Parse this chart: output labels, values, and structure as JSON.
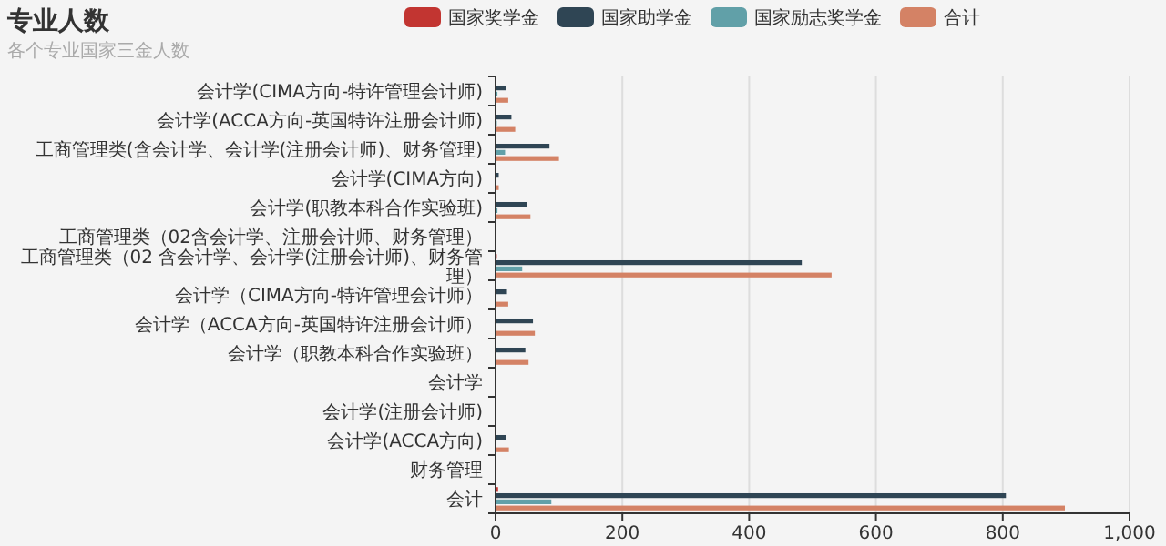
{
  "chart_data": {
    "type": "bar",
    "orientation": "horizontal",
    "title": "专业人数",
    "subtitle": "各个专业国家三金人数",
    "categories": [
      "会计学(CIMA方向-特许管理会计师)",
      "会计学(ACCA方向-英国特许注册会计师)",
      "工商管理类(含会计学、会计学(注册会计师)、财务管理)",
      "会计学(CIMA方向)",
      "会计学(职教本科合作实验班)",
      "工商管理类（02含会计学、注册会计师、财务管理）",
      "工商管理类（02 含会计学、会计学(注册会计师)、财务管理）",
      "会计学（CIMA方向-特许管理会计师）",
      "会计学（ACCA方向-英国特许注册会计师）",
      "会计学（职教本科合作实验班）",
      "会计学",
      "会计学(注册会计师)",
      "会计学(ACCA方向)",
      "财务管理",
      "会计"
    ],
    "series": [
      {
        "name": "国家奖学金",
        "color": "#c23531",
        "values": [
          0,
          0,
          0,
          0,
          0,
          null,
          2,
          0,
          0,
          0,
          null,
          null,
          0,
          null,
          4
        ]
      },
      {
        "name": "国家助学金",
        "color": "#2f4554",
        "values": [
          16,
          25,
          85,
          5,
          49,
          null,
          483,
          18,
          59,
          47,
          null,
          null,
          17,
          null,
          805
        ]
      },
      {
        "name": "国家励志奖学金",
        "color": "#61a0a8",
        "values": [
          3,
          2,
          15,
          0,
          3,
          null,
          42,
          0,
          0,
          0,
          null,
          null,
          0,
          null,
          88
        ]
      },
      {
        "name": "合计",
        "color": "#d48265",
        "values": [
          20,
          31,
          100,
          5,
          55,
          null,
          530,
          20,
          62,
          52,
          null,
          null,
          21,
          null,
          898
        ]
      }
    ],
    "xlim": [
      0,
      1000
    ],
    "xticks": [
      0,
      200,
      400,
      600,
      800,
      {
        "value": 1000,
        "label": "1,000"
      }
    ],
    "grid": "x",
    "legend": "top"
  }
}
